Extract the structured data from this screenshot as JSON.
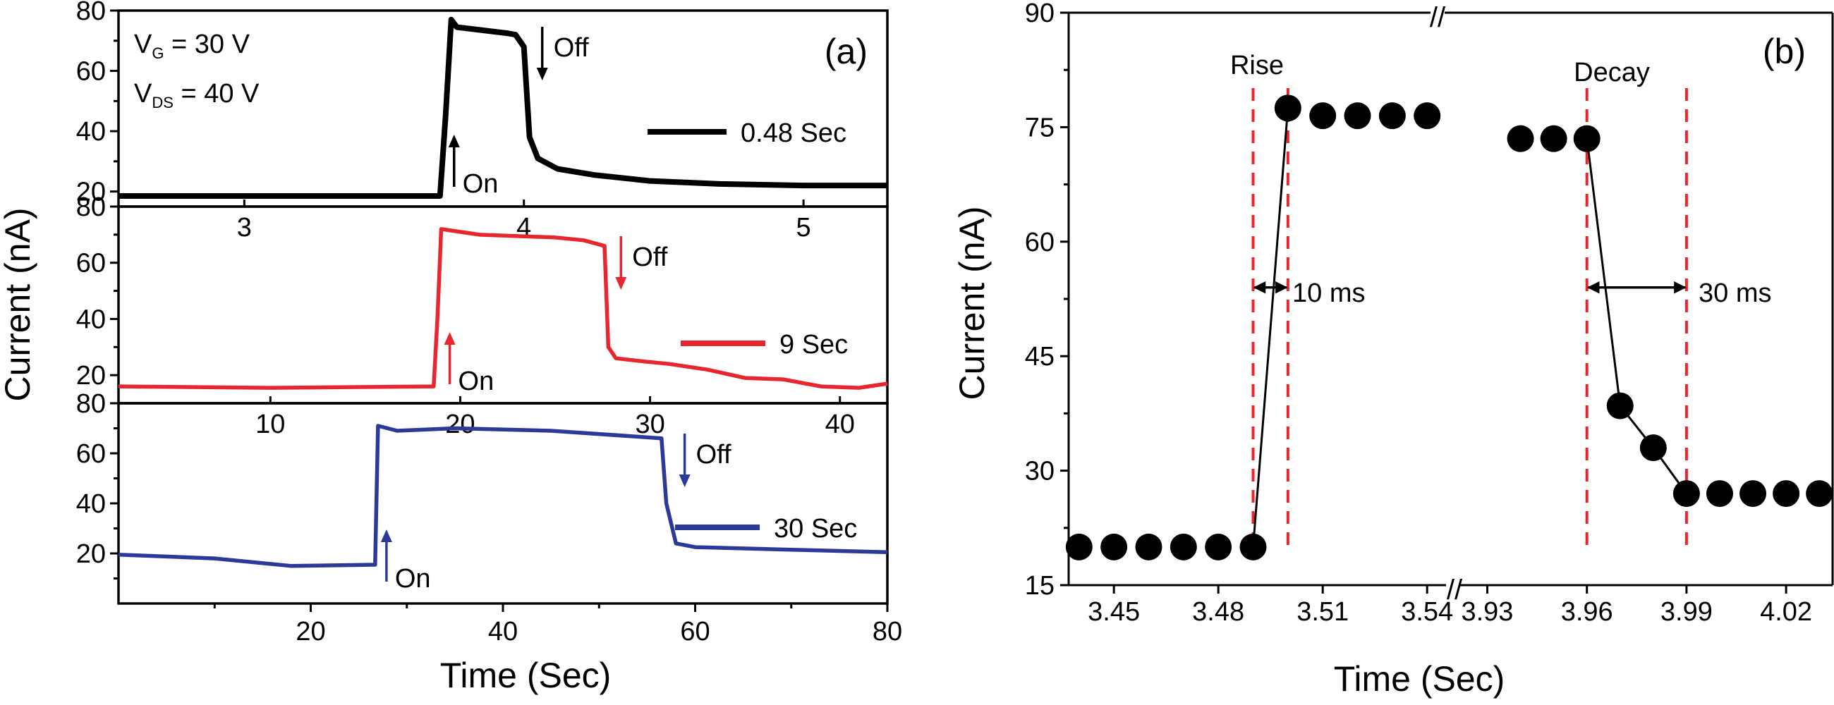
{
  "chart_data": [
    {
      "type": "line",
      "panel_label": "(a)",
      "xlabel": "Time (Sec)",
      "ylabel": "Current (nA)",
      "conditions": {
        "vg": {
          "main": "V",
          "sub": "G",
          "rest": " = 30 V"
        },
        "vds": {
          "main": "V",
          "sub": "DS",
          "rest": " = 40 V"
        }
      },
      "on_label": "On",
      "off_label": "Off",
      "subplots": [
        {
          "legend": "0.48 Sec",
          "color": "#000000",
          "ylim": [
            15,
            80
          ],
          "yticks": [
            20,
            40,
            60,
            80
          ],
          "xlim": [
            2.55,
            5.3
          ],
          "xticks": [
            3,
            4,
            5
          ],
          "tick_labels_inside": true,
          "on_time": 3.72,
          "off_time": 4.0,
          "x": [
            2.55,
            3.7,
            3.72,
            3.74,
            3.76,
            3.94,
            3.97,
            4.0,
            4.02,
            4.05,
            4.12,
            4.25,
            4.45,
            4.7,
            5.0,
            5.3
          ],
          "y": [
            18.5,
            18.5,
            45.0,
            77.0,
            74.5,
            72.5,
            72.0,
            68.0,
            38.0,
            31.0,
            27.5,
            25.5,
            23.5,
            22.5,
            22.0,
            22.0
          ]
        },
        {
          "legend": "9 Sec",
          "color": "#e8262d",
          "ylim": [
            10,
            80
          ],
          "yticks": [
            20,
            40,
            60,
            80
          ],
          "xlim": [
            2.0,
            42.5
          ],
          "xticks": [
            10,
            20,
            30,
            40
          ],
          "tick_labels_inside": true,
          "on_time": 19.0,
          "off_time": 27.5,
          "x": [
            2.0,
            10.0,
            18.6,
            18.8,
            19.0,
            21.0,
            23.0,
            25.0,
            26.5,
            27.6,
            27.8,
            28.2,
            29.5,
            31.0,
            33.0,
            35.0,
            37.0,
            39.0,
            41.0,
            42.5
          ],
          "y": [
            16.0,
            15.5,
            16.0,
            40.0,
            72.0,
            70.0,
            69.5,
            69.0,
            68.0,
            66.0,
            30.0,
            26.0,
            25.0,
            24.0,
            22.0,
            19.0,
            18.5,
            16.0,
            15.5,
            17.0
          ]
        },
        {
          "legend": "30 Sec",
          "color": "#2b3a97",
          "ylim": [
            0,
            80
          ],
          "yticks": [
            20,
            40,
            60,
            80
          ],
          "xlim": [
            0,
            80
          ],
          "xticks": [
            20,
            40,
            60,
            80
          ],
          "tick_labels_inside": false,
          "on_time": 27.0,
          "off_time": 57.0,
          "x": [
            0,
            10,
            18,
            26.7,
            27.0,
            29.0,
            35.0,
            45.0,
            56.5,
            57.0,
            58.0,
            60.0,
            70.0,
            80.0
          ],
          "y": [
            19.5,
            18.0,
            15.0,
            15.5,
            71.0,
            69.0,
            70.0,
            69.0,
            66.0,
            40.0,
            24.0,
            22.5,
            21.5,
            20.5
          ]
        }
      ]
    },
    {
      "type": "scatter",
      "panel_label": "(b)",
      "xlabel": "Time (Sec)",
      "ylabel": "Current (nA)",
      "ylim": [
        15,
        90
      ],
      "yticks": [
        15,
        30,
        45,
        60,
        75,
        90
      ],
      "x_segments": [
        {
          "xlim": [
            3.437,
            3.543
          ],
          "xticks": [
            3.45,
            3.48,
            3.51,
            3.54
          ]
        },
        {
          "xlim": [
            3.918,
            4.034
          ],
          "xticks": [
            3.93,
            3.96,
            3.99,
            4.02
          ]
        }
      ],
      "x_tick_labels": [
        "3.45",
        "3.48",
        "3.51",
        "3.54",
        "3.93",
        "3.96",
        "3.99",
        "4.02"
      ],
      "points": [
        {
          "x": 3.44,
          "y": 20.0
        },
        {
          "x": 3.45,
          "y": 20.0
        },
        {
          "x": 3.46,
          "y": 20.0
        },
        {
          "x": 3.47,
          "y": 20.0
        },
        {
          "x": 3.48,
          "y": 20.0
        },
        {
          "x": 3.49,
          "y": 20.0
        },
        {
          "x": 3.5,
          "y": 77.5
        },
        {
          "x": 3.51,
          "y": 76.5
        },
        {
          "x": 3.52,
          "y": 76.5
        },
        {
          "x": 3.53,
          "y": 76.5
        },
        {
          "x": 3.54,
          "y": 76.5
        },
        {
          "x": 3.94,
          "y": 73.5
        },
        {
          "x": 3.95,
          "y": 73.5
        },
        {
          "x": 3.96,
          "y": 73.5
        },
        {
          "x": 3.97,
          "y": 38.5
        },
        {
          "x": 3.98,
          "y": 33.0
        },
        {
          "x": 3.99,
          "y": 27.0
        },
        {
          "x": 4.0,
          "y": 27.0
        },
        {
          "x": 4.01,
          "y": 27.0
        },
        {
          "x": 4.02,
          "y": 27.0
        },
        {
          "x": 4.03,
          "y": 27.0
        }
      ],
      "connectors": [
        {
          "x": [
            3.49,
            3.5
          ],
          "y": [
            20.0,
            77.5
          ]
        },
        {
          "x": [
            3.96,
            3.97,
            3.98,
            3.99
          ],
          "y": [
            73.5,
            38.5,
            33.0,
            27.0
          ]
        }
      ],
      "marker_lines_x": [
        3.49,
        3.5,
        3.96,
        3.99
      ],
      "marker_color": "#e8262d",
      "rise": {
        "label": "Rise",
        "duration": "10 ms",
        "from": 3.49,
        "to": 3.5,
        "y": 54
      },
      "decay": {
        "label": "Decay",
        "duration": "30 ms",
        "from": 3.96,
        "to": 3.99,
        "y": 54
      },
      "axis_break_symbol": "//"
    }
  ]
}
